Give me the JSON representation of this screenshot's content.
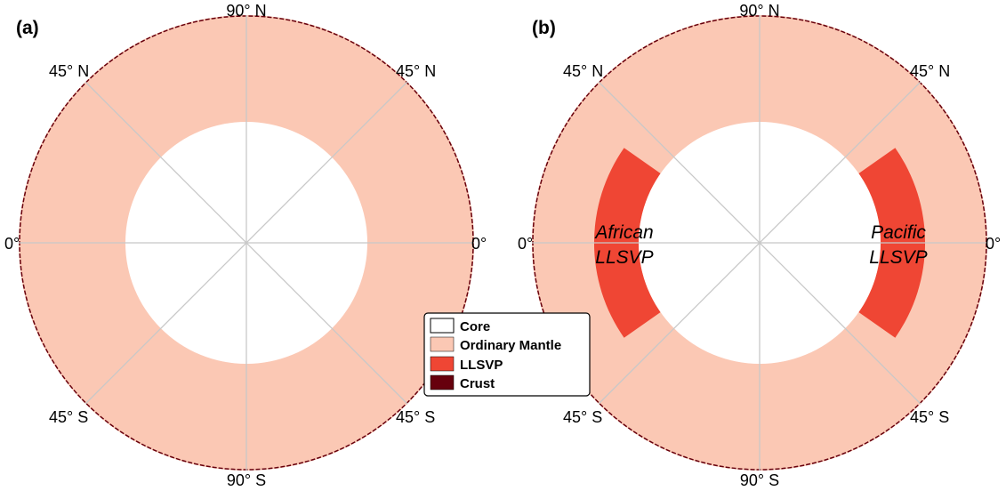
{
  "panels": [
    {
      "label": "(a)",
      "angle_labels": {
        "top": "90° N",
        "bottom": "90° S",
        "left": "0°",
        "right": "0°",
        "upper_left": "45° N",
        "upper_right": "45° N",
        "lower_left": "45° S",
        "lower_right": "45° S"
      },
      "regions": []
    },
    {
      "label": "(b)",
      "angle_labels": {
        "top": "90° N",
        "bottom": "90° S",
        "left": "0°",
        "right": "0°",
        "upper_left": "45° N",
        "upper_right": "45° N",
        "lower_left": "45° S",
        "lower_right": "45° S"
      },
      "regions": [
        {
          "line1": "African",
          "line2": "LLSVP"
        },
        {
          "line1": "Pacific",
          "line2": "LLSVP"
        }
      ]
    }
  ],
  "legend": [
    {
      "label": "Core",
      "color": "#ffffff"
    },
    {
      "label": "Ordinary Mantle",
      "color": "#fbc8b4"
    },
    {
      "label": "LLSVP",
      "color": "#ef4634"
    },
    {
      "label": "Crust",
      "color": "#67000d"
    }
  ],
  "colors": {
    "grid": "#c8c8c8",
    "crust_line": "#67000d"
  }
}
